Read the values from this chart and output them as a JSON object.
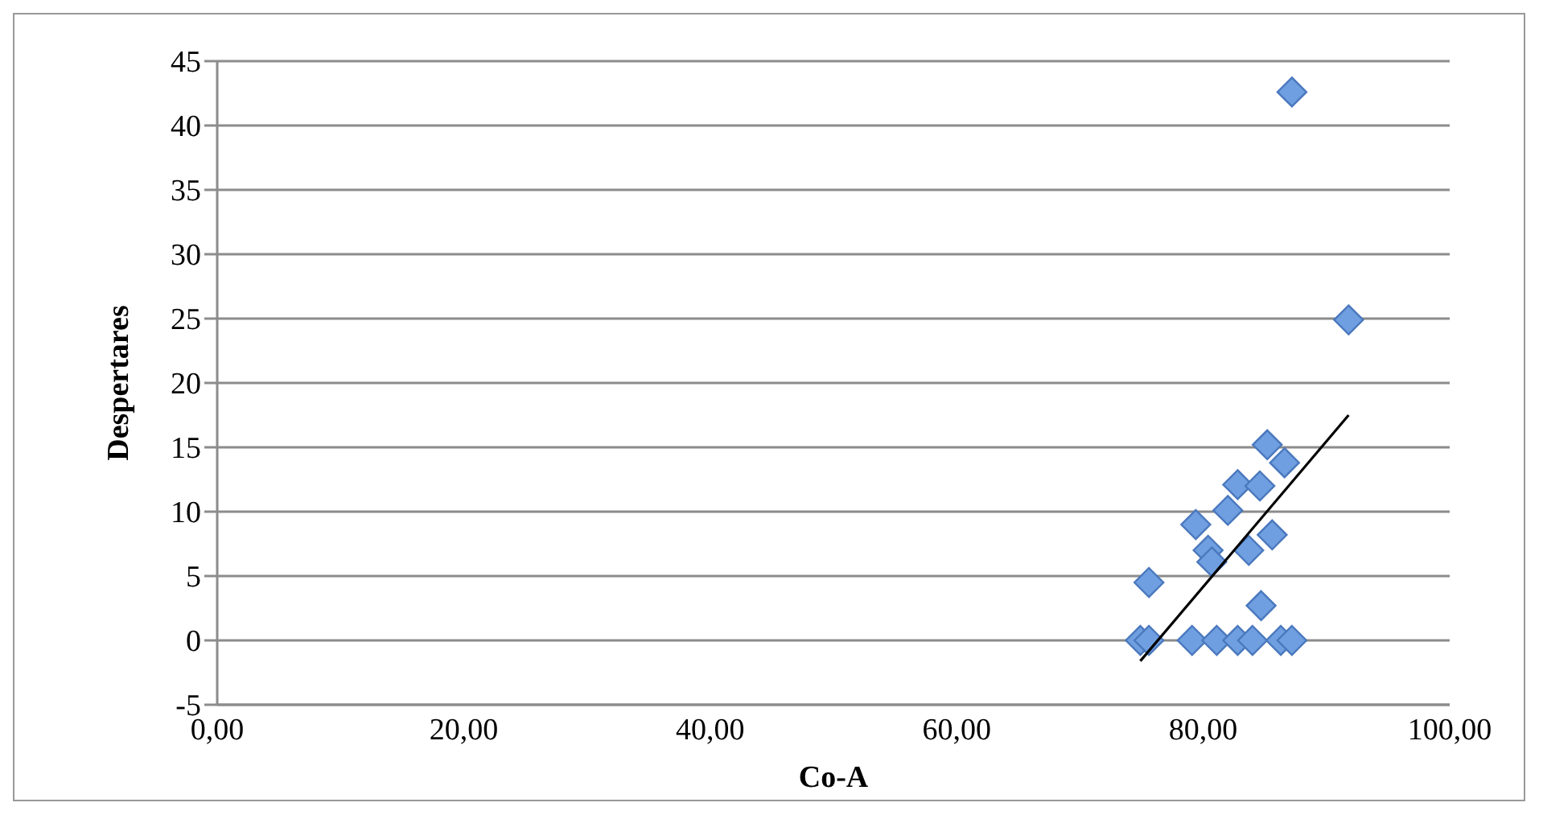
{
  "chart_data": {
    "type": "scatter",
    "xlabel": "Co-A",
    "ylabel": "Despertares",
    "xlim": [
      0,
      100
    ],
    "xticks": [
      {
        "value": 0,
        "label": "0,00"
      },
      {
        "value": 20,
        "label": "20,00"
      },
      {
        "value": 40,
        "label": "40,00"
      },
      {
        "value": 60,
        "label": "60,00"
      },
      {
        "value": 80,
        "label": "80,00"
      },
      {
        "value": 100,
        "label": "100,00"
      }
    ],
    "ylim": [
      -5,
      45
    ],
    "yticks": [
      -5,
      0,
      5,
      10,
      15,
      20,
      25,
      30,
      35,
      40,
      45
    ],
    "grid": "y",
    "series": [
      {
        "type": "scatter",
        "marker": "diamond",
        "color": "#6f9fe0",
        "x": [
          87.2,
          91.8,
          75.6,
          74.9,
          75.6,
          79.1,
          81.1,
          82.8,
          84.0,
          86.3,
          87.2,
          85.2,
          86.6,
          82.8,
          84.6,
          82.0,
          79.4,
          80.4,
          80.7,
          83.7,
          85.6,
          84.7
        ],
        "values": [
          42.6,
          24.9,
          4.5,
          0,
          0,
          0,
          0,
          0,
          0,
          0,
          0,
          15.2,
          13.8,
          12.1,
          12.0,
          10.1,
          9.0,
          7.0,
          6.1,
          7.0,
          8.2,
          2.7
        ]
      },
      {
        "type": "line",
        "marker": "none",
        "color": "#000000",
        "x": [
          74.9,
          91.8
        ],
        "values": [
          -1.6,
          17.5
        ]
      }
    ]
  }
}
